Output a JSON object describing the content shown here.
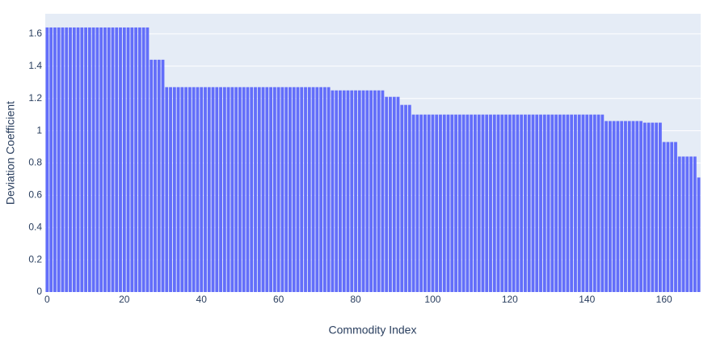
{
  "chart_data": {
    "type": "bar",
    "x_label": "Commodity Index",
    "y_label": "Deviation Coefficient",
    "x": [
      0,
      1,
      2,
      3,
      4,
      5,
      6,
      7,
      8,
      9,
      10,
      11,
      12,
      13,
      14,
      15,
      16,
      17,
      18,
      19,
      20,
      21,
      22,
      23,
      24,
      25,
      26,
      27,
      28,
      29,
      30,
      31,
      32,
      33,
      34,
      35,
      36,
      37,
      38,
      39,
      40,
      41,
      42,
      43,
      44,
      45,
      46,
      47,
      48,
      49,
      50,
      51,
      52,
      53,
      54,
      55,
      56,
      57,
      58,
      59,
      60,
      61,
      62,
      63,
      64,
      65,
      66,
      67,
      68,
      69,
      70,
      71,
      72,
      73,
      74,
      75,
      76,
      77,
      78,
      79,
      80,
      81,
      82,
      83,
      84,
      85,
      86,
      87,
      88,
      89,
      90,
      91,
      92,
      93,
      94,
      95,
      96,
      97,
      98,
      99,
      100,
      101,
      102,
      103,
      104,
      105,
      106,
      107,
      108,
      109,
      110,
      111,
      112,
      113,
      114,
      115,
      116,
      117,
      118,
      119,
      120,
      121,
      122,
      123,
      124,
      125,
      126,
      127,
      128,
      129,
      130,
      131,
      132,
      133,
      134,
      135,
      136,
      137,
      138,
      139,
      140,
      141,
      142,
      143,
      144,
      145,
      146,
      147,
      148,
      149,
      150,
      151,
      152,
      153,
      154,
      155,
      156,
      157,
      158,
      159,
      160,
      161,
      162,
      163,
      164,
      165,
      166,
      167,
      168,
      169
    ],
    "values": [
      1.64,
      1.64,
      1.64,
      1.64,
      1.64,
      1.64,
      1.64,
      1.64,
      1.64,
      1.64,
      1.64,
      1.64,
      1.64,
      1.64,
      1.64,
      1.64,
      1.64,
      1.64,
      1.64,
      1.64,
      1.64,
      1.64,
      1.64,
      1.64,
      1.64,
      1.64,
      1.64,
      1.44,
      1.44,
      1.44,
      1.44,
      1.27,
      1.27,
      1.27,
      1.27,
      1.27,
      1.27,
      1.27,
      1.27,
      1.27,
      1.27,
      1.27,
      1.27,
      1.27,
      1.27,
      1.27,
      1.27,
      1.27,
      1.27,
      1.27,
      1.27,
      1.27,
      1.27,
      1.27,
      1.27,
      1.27,
      1.27,
      1.27,
      1.27,
      1.27,
      1.27,
      1.27,
      1.27,
      1.27,
      1.27,
      1.27,
      1.27,
      1.27,
      1.27,
      1.27,
      1.27,
      1.27,
      1.27,
      1.27,
      1.25,
      1.25,
      1.25,
      1.25,
      1.25,
      1.25,
      1.25,
      1.25,
      1.25,
      1.25,
      1.25,
      1.25,
      1.25,
      1.25,
      1.21,
      1.21,
      1.21,
      1.21,
      1.16,
      1.16,
      1.16,
      1.1,
      1.1,
      1.1,
      1.1,
      1.1,
      1.1,
      1.1,
      1.1,
      1.1,
      1.1,
      1.1,
      1.1,
      1.1,
      1.1,
      1.1,
      1.1,
      1.1,
      1.1,
      1.1,
      1.1,
      1.1,
      1.1,
      1.1,
      1.1,
      1.1,
      1.1,
      1.1,
      1.1,
      1.1,
      1.1,
      1.1,
      1.1,
      1.1,
      1.1,
      1.1,
      1.1,
      1.1,
      1.1,
      1.1,
      1.1,
      1.1,
      1.1,
      1.1,
      1.1,
      1.1,
      1.1,
      1.1,
      1.1,
      1.1,
      1.1,
      1.06,
      1.06,
      1.06,
      1.06,
      1.06,
      1.06,
      1.06,
      1.06,
      1.06,
      1.06,
      1.05,
      1.05,
      1.05,
      1.05,
      1.05,
      0.93,
      0.93,
      0.93,
      0.93,
      0.84,
      0.84,
      0.84,
      0.84,
      0.84,
      0.71
    ],
    "color": "#636efa",
    "xlim": [
      -0.5,
      169.5
    ],
    "xticks": [
      0,
      20,
      40,
      60,
      80,
      100,
      120,
      140,
      160
    ],
    "ylim": [
      0,
      1.725
    ],
    "yticks": [
      0,
      0.2,
      0.4,
      0.6,
      0.8,
      1,
      1.2,
      1.4,
      1.6
    ],
    "grid": true
  }
}
